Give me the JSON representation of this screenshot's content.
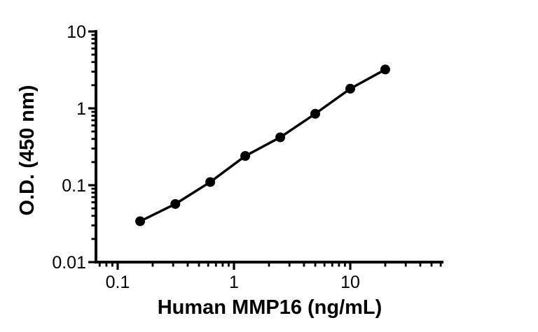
{
  "chart_data": {
    "type": "scatter",
    "subtype": "log-log standard curve with connecting line",
    "title": "",
    "xlabel": "Human MMP16 (ng/mL)",
    "ylabel": "O.D. (450 nm)",
    "x_scale": "log",
    "y_scale": "log",
    "x": [
      0.156,
      0.313,
      0.625,
      1.25,
      2.5,
      5,
      10,
      20
    ],
    "y": [
      0.034,
      0.057,
      0.11,
      0.24,
      0.42,
      0.85,
      1.8,
      3.2
    ],
    "x_ticks": [
      0.1,
      1,
      10
    ],
    "x_tick_labels": [
      "0.1",
      "1",
      "10"
    ],
    "x_minor_ticks": [
      0.07,
      0.08,
      0.09,
      0.2,
      0.3,
      0.4,
      0.5,
      0.6,
      0.7,
      0.8,
      0.9,
      2,
      3,
      4,
      5,
      6,
      7,
      8,
      9,
      20,
      30,
      40,
      50,
      60
    ],
    "y_ticks": [
      0.01,
      0.1,
      1,
      10
    ],
    "y_tick_labels": [
      "0.01",
      "0.1",
      "1",
      "10"
    ],
    "y_minor_ticks": [
      0.02,
      0.03,
      0.04,
      0.05,
      0.06,
      0.07,
      0.08,
      0.09,
      0.2,
      0.3,
      0.4,
      0.5,
      0.6,
      0.7,
      0.8,
      0.9,
      2,
      3,
      4,
      5,
      6,
      7,
      8,
      9
    ],
    "x_range": [
      0.065,
      63
    ],
    "y_range": [
      0.01,
      10
    ],
    "grid": false,
    "legend": null,
    "marker": "filled-circle",
    "marker_color": "#000000",
    "line_color": "#000000",
    "axis_color": "#000000",
    "background_color": "#ffffff"
  }
}
